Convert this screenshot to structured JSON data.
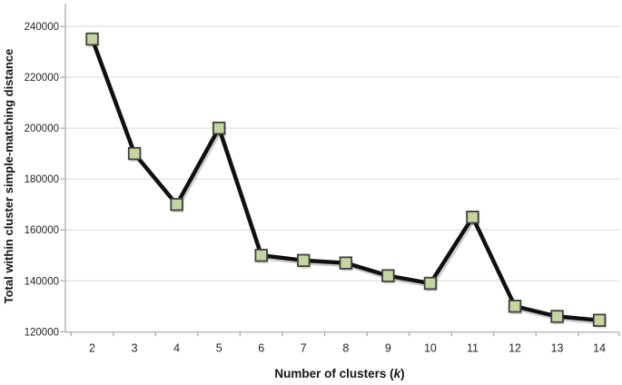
{
  "figure": {
    "background": "#ffffff"
  },
  "chart_data": {
    "type": "line",
    "title": "",
    "xlabel": "Number of clusters (k)",
    "xlabel_parts": {
      "prefix": "Number of clusters (",
      "k": "k",
      "suffix": ")"
    },
    "ylabel": "Total within cluster simple-matching distance",
    "categories": [
      2,
      3,
      4,
      5,
      6,
      7,
      8,
      9,
      10,
      11,
      12,
      13,
      14
    ],
    "values": [
      235000,
      190000,
      170000,
      200000,
      150000,
      148000,
      147000,
      142000,
      139000,
      165000,
      130000,
      126000,
      124500
    ],
    "ylim": [
      120000,
      240000
    ],
    "yticks": [
      120000,
      140000,
      160000,
      180000,
      200000,
      220000,
      240000
    ],
    "grid": "horizontal",
    "legend": "none",
    "colors": {
      "line": "#0f0f0f",
      "marker_fill": "#c3d69b",
      "marker_border": "#3f3f3f",
      "gridline": "#d9d9d9",
      "axis": "#a6a6a6",
      "tick_text": "#262626"
    }
  }
}
